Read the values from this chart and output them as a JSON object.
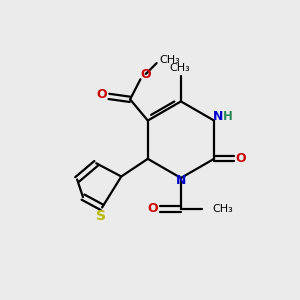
{
  "bg_color": "#ebebeb",
  "bond_color": "#000000",
  "N_color": "#0000cd",
  "O_color": "#cc0000",
  "S_color": "#b8b800",
  "H_color": "#2e8b57",
  "linewidth": 1.6,
  "figsize": [
    3.0,
    3.0
  ],
  "dpi": 100,
  "xlim": [
    0,
    10
  ],
  "ylim": [
    0,
    10
  ]
}
